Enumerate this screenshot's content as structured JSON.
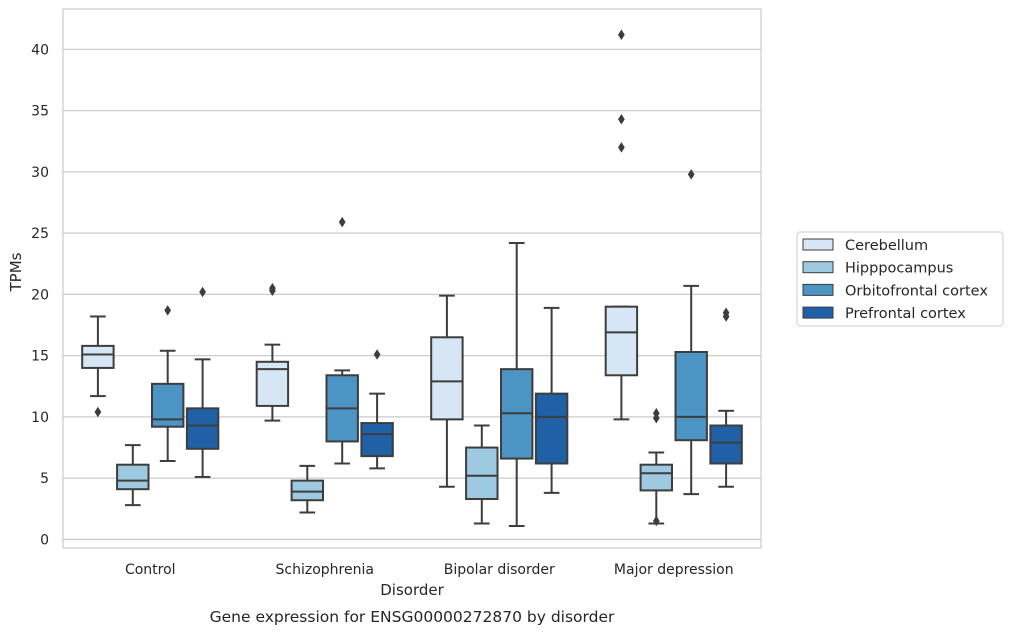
{
  "chart_data": {
    "type": "box",
    "caption": "Gene expression for ENSG00000272870 by disorder",
    "xlabel": "Disorder",
    "ylabel": "TPMs",
    "ylim": [
      -0.7,
      43.3
    ],
    "yticks": [
      0,
      5,
      10,
      15,
      20,
      25,
      30,
      35,
      40
    ],
    "grid": true,
    "legend_position": "right",
    "categories": [
      "Control",
      "Schizophrenia",
      "Bipolar disorder",
      "Major depression"
    ],
    "series": [
      {
        "name": "Cerebellum",
        "color": "#d6e6f4",
        "boxes": [
          {
            "whisker_low": 11.7,
            "q1": 14.0,
            "median": 15.1,
            "q3": 15.8,
            "whisker_high": 18.2,
            "outliers": [
              10.4
            ]
          },
          {
            "whisker_low": 9.7,
            "q1": 10.9,
            "median": 13.9,
            "q3": 14.5,
            "whisker_high": 15.9,
            "outliers": [
              20.3,
              20.5
            ]
          },
          {
            "whisker_low": 4.3,
            "q1": 9.8,
            "median": 12.9,
            "q3": 16.5,
            "whisker_high": 19.9,
            "outliers": []
          },
          {
            "whisker_low": 9.8,
            "q1": 13.4,
            "median": 16.9,
            "q3": 19.0,
            "whisker_high": 19.0,
            "outliers": [
              32.0,
              34.3,
              41.2
            ]
          }
        ]
      },
      {
        "name": "Hipppocampus",
        "color": "#9ecae1",
        "boxes": [
          {
            "whisker_low": 2.8,
            "q1": 4.1,
            "median": 4.8,
            "q3": 6.1,
            "whisker_high": 7.7,
            "outliers": []
          },
          {
            "whisker_low": 2.2,
            "q1": 3.2,
            "median": 3.9,
            "q3": 4.8,
            "whisker_high": 6.0,
            "outliers": []
          },
          {
            "whisker_low": 1.3,
            "q1": 3.3,
            "median": 5.2,
            "q3": 7.5,
            "whisker_high": 9.3,
            "outliers": []
          },
          {
            "whisker_low": 1.3,
            "q1": 4.0,
            "median": 5.4,
            "q3": 6.1,
            "whisker_high": 7.1,
            "outliers": [
              1.5,
              9.9,
              10.3
            ]
          }
        ]
      },
      {
        "name": "Orbitofrontal cortex",
        "color": "#4b94c4",
        "boxes": [
          {
            "whisker_low": 6.4,
            "q1": 9.2,
            "median": 9.8,
            "q3": 12.7,
            "whisker_high": 15.4,
            "outliers": [
              18.7
            ]
          },
          {
            "whisker_low": 6.2,
            "q1": 8.0,
            "median": 10.7,
            "q3": 13.4,
            "whisker_high": 13.8,
            "outliers": [
              25.9
            ]
          },
          {
            "whisker_low": 1.1,
            "q1": 6.6,
            "median": 10.3,
            "q3": 13.9,
            "whisker_high": 24.2,
            "outliers": []
          },
          {
            "whisker_low": 3.7,
            "q1": 8.1,
            "median": 10.0,
            "q3": 15.3,
            "whisker_high": 20.7,
            "outliers": [
              29.8
            ]
          }
        ]
      },
      {
        "name": "Prefrontal cortex",
        "color": "#2060a7",
        "boxes": [
          {
            "whisker_low": 5.1,
            "q1": 7.4,
            "median": 9.3,
            "q3": 10.7,
            "whisker_high": 14.7,
            "outliers": [
              20.2
            ]
          },
          {
            "whisker_low": 5.8,
            "q1": 6.8,
            "median": 8.6,
            "q3": 9.5,
            "whisker_high": 11.9,
            "outliers": [
              15.1
            ]
          },
          {
            "whisker_low": 3.8,
            "q1": 6.2,
            "median": 10.0,
            "q3": 11.9,
            "whisker_high": 18.9,
            "outliers": []
          },
          {
            "whisker_low": 4.3,
            "q1": 6.2,
            "median": 7.9,
            "q3": 9.3,
            "whisker_high": 10.5,
            "outliers": [
              18.2,
              18.5
            ]
          }
        ]
      }
    ]
  }
}
